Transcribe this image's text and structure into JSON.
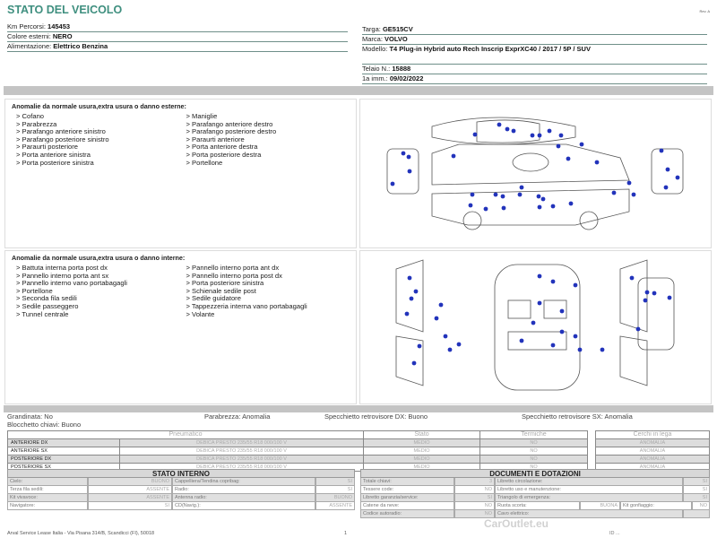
{
  "header": {
    "title": "STATO DEL VEICOLO",
    "rev": "Rev. A"
  },
  "vehicle_left": [
    {
      "label": "Km Percorsi:",
      "value": "145453"
    },
    {
      "label": "Colore esterni:",
      "value": "NERO"
    },
    {
      "label": "Alimentazione:",
      "value": "Elettrico Benzina"
    }
  ],
  "vehicle_right": [
    {
      "label": "Targa:",
      "value": "GE515CV"
    },
    {
      "label": "Marca:",
      "value": "VOLVO"
    },
    {
      "label": "Modello:",
      "value": "T4 Plug-in Hybrid auto Rech Inscrip ExprXC40 / 2017 / 5P / SUV"
    },
    {
      "label": "Telaio N.:",
      "value": "15888"
    },
    {
      "label": "1a imm.:",
      "value": "09/02/2022"
    }
  ],
  "external": {
    "title": "Anomalie da normale usura,extra usura o danno esterne:",
    "col1": [
      "> Cofano",
      "> Parabrezza",
      "> Parafango anteriore sinistro",
      "> Parafango posteriore sinistro",
      "> Paraurti posteriore",
      "> Porta anteriore sinistra",
      "> Porta posteriore sinistra"
    ],
    "col2": [
      "> Maniglie",
      "> Parafango anteriore destro",
      "> Parafango posteriore destro",
      "> Paraurti anteriore",
      "> Porta anteriore destra",
      "> Porta posteriore destra",
      "> Portellone"
    ]
  },
  "internal": {
    "title": "Anomalie da normale usura,extra usura o danno interne:",
    "col1": [
      "> Battuta interna porta post dx",
      "> Pannello interno porta ant sx",
      "> Pannello interno vano portabagagli",
      "> Portellone",
      "> Seconda fila sedili",
      "> Sedile passeggero",
      "> Tunnel centrale"
    ],
    "col2": [
      "> Pannello interno porta ant dx",
      "> Pannello interno porta post dx",
      "> Porta posteriore sinistra",
      "> Schienale sedile post",
      "> Sedile guidatore",
      "> Tappezzeria interna vano portabagagli",
      "> Volante"
    ]
  },
  "summary": {
    "grandinata": "Grandinata: No",
    "parabrezza": "Parabrezza: Anomalia",
    "spec_dx": "Specchietto retrovisore DX: Buono",
    "spec_sx": "Specchietto retrovisore SX: Anomalia",
    "blocchetto": "Blocchetto chiavi: Buono"
  },
  "tyres": {
    "headers": [
      "Pneumatico",
      "Stato",
      "Termiche"
    ],
    "rim_header": "Cerchi in lega",
    "rows": [
      {
        "pos": "ANTERIORE DX",
        "tyre": "DEBICA PRESTO 235/55 R18 000/100 V",
        "stato": "MEDIO",
        "termiche": "NO",
        "cerchi": "ANOMALIA"
      },
      {
        "pos": "ANTERIORE SX",
        "tyre": "DEBICA PRESTO 235/55 R18 000/100 V",
        "stato": "MEDIO",
        "termiche": "NO",
        "cerchi": "ANOMALIA"
      },
      {
        "pos": "POSTERIORE DX",
        "tyre": "DEBICA PRESTO 235/55 R18 000/100 V",
        "stato": "MEDIO",
        "termiche": "NO",
        "cerchi": "ANOMALIA"
      },
      {
        "pos": "POSTERIORE SX",
        "tyre": "DEBICA PRESTO 235/55 R18 000/100 V",
        "stato": "MEDIO",
        "termiche": "NO",
        "cerchi": "ANOMALIA"
      }
    ]
  },
  "stato_interno": {
    "title": "STATO INTERNO",
    "rows": [
      [
        "Cielo:",
        "BUONO",
        "Cappelliera/Tendina copribag:",
        "SI"
      ],
      [
        "Terza fila sedili:",
        "ASSENTE",
        "Radio:",
        "SI"
      ],
      [
        "Kit vivavoce:",
        "ASSENTE",
        "Antenna radio:",
        "BUONO"
      ],
      [
        "Navigatore:",
        "SI",
        "CD(Navig.):",
        "ASSENTE"
      ]
    ]
  },
  "documenti": {
    "title": "DOCUMENTI E DOTAZIONI",
    "rows": [
      [
        "Totale chiavi:",
        "3",
        "Libretto circolazione:",
        "SI"
      ],
      [
        "Tessere code:",
        "NO",
        "Libretto uso e manutenzione:",
        "SI"
      ],
      [
        "Libretto garanzia/service:",
        "SI",
        "Triangolo di emergenza:",
        "SI"
      ],
      [
        "Catene da neve:",
        "NO",
        "Ruota scorta:",
        "BUONA",
        "Kit gonfiaggio:",
        "NO"
      ],
      [
        "Codice autoradio:",
        "NO",
        "Cavo elettrico:",
        ""
      ]
    ]
  },
  "footer": {
    "address": "Arval Service Lease Italia - Via Pisana 314/B, Scandicci (FI), 50018",
    "page": "1",
    "id": "ID ...",
    "watermark": "CarOutlet.eu"
  },
  "colors": {
    "accent": "#3f8f7f",
    "damage_dot": "#2233bb",
    "bar": "#c4c4c4"
  }
}
